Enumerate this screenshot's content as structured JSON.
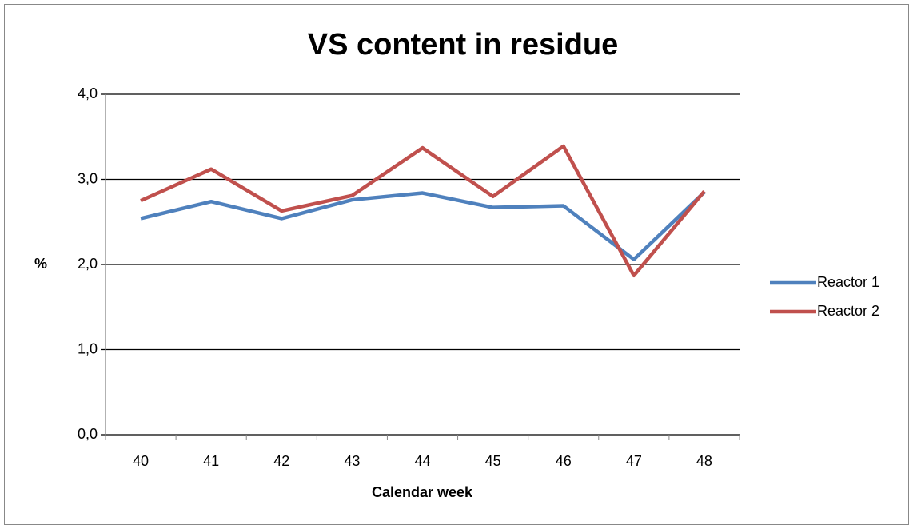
{
  "chart_data": {
    "type": "line",
    "title": "VS content in residue",
    "x_label": "Calendar week",
    "y_label": "%",
    "categories": [
      "40",
      "41",
      "42",
      "43",
      "44",
      "45",
      "46",
      "47",
      "48"
    ],
    "series": [
      {
        "name": "Reactor 1",
        "color": "#4f81bd",
        "values": [
          2.54,
          2.74,
          2.54,
          2.76,
          2.84,
          2.67,
          2.69,
          2.06,
          2.85
        ]
      },
      {
        "name": "Reactor 2",
        "color": "#c0504d",
        "values": [
          2.75,
          3.12,
          2.63,
          2.81,
          3.37,
          2.8,
          3.39,
          1.87,
          2.86
        ]
      }
    ],
    "ylim": [
      0,
      4
    ],
    "yticks": [
      {
        "value": 0,
        "label": "0,0"
      },
      {
        "value": 1,
        "label": "1,0"
      },
      {
        "value": 2,
        "label": "2,0"
      },
      {
        "value": 3,
        "label": "3,0"
      },
      {
        "value": 4,
        "label": "4,0"
      }
    ],
    "grid": true,
    "legend": "right"
  }
}
